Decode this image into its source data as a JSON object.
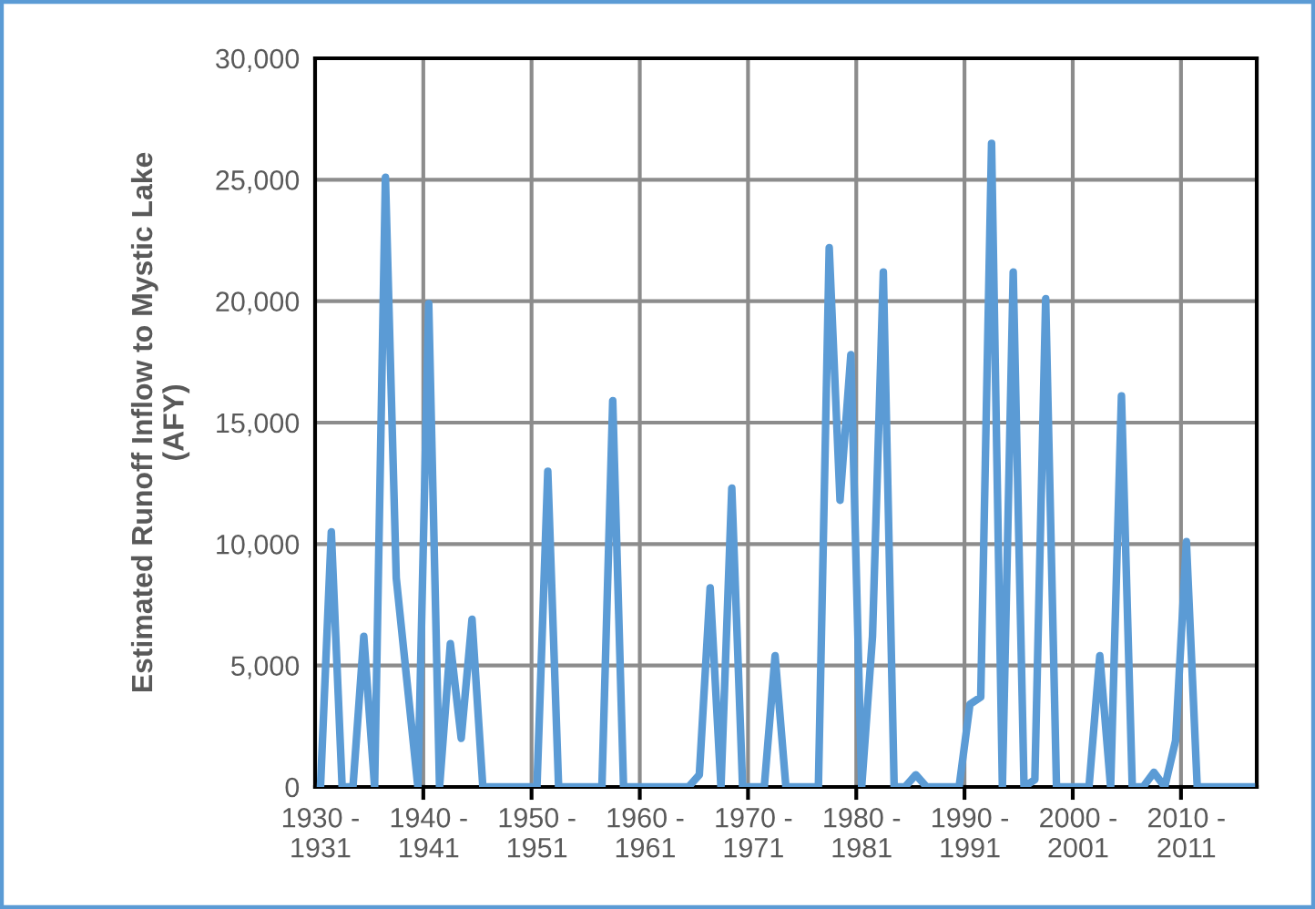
{
  "chart_data": {
    "type": "line",
    "ylabel": "Estimated Runoff Inflow to Mystic Lake (AFY)",
    "categories": [
      "1930 - 1931",
      null,
      null,
      null,
      null,
      null,
      null,
      null,
      null,
      null,
      "1940 - 1941",
      null,
      null,
      null,
      null,
      null,
      null,
      null,
      null,
      null,
      "1950 - 1951",
      null,
      null,
      null,
      null,
      null,
      null,
      null,
      null,
      null,
      "1960 - 1961",
      null,
      null,
      null,
      null,
      null,
      null,
      null,
      null,
      null,
      "1970 - 1971",
      null,
      null,
      null,
      null,
      null,
      null,
      null,
      null,
      null,
      "1980 - 1981",
      null,
      null,
      null,
      null,
      null,
      null,
      null,
      null,
      null,
      "1990 - 1991",
      null,
      null,
      null,
      null,
      null,
      null,
      null,
      null,
      null,
      "2000 - 2001",
      null,
      null,
      null,
      null,
      null,
      null,
      null,
      null,
      null,
      "2010 - 2011",
      null,
      null,
      null,
      null,
      null,
      null
    ],
    "series": [
      {
        "color": "#5b9bd5",
        "values": [
          0,
          10500,
          0,
          0,
          6200,
          0,
          25100,
          8600,
          4300,
          0,
          19900,
          0,
          5900,
          2000,
          6900,
          0,
          0,
          0,
          0,
          0,
          0,
          13000,
          0,
          0,
          0,
          0,
          0,
          15900,
          0,
          0,
          0,
          0,
          0,
          0,
          0,
          500,
          8200,
          0,
          12300,
          0,
          0,
          0,
          5400,
          0,
          0,
          0,
          0,
          22200,
          11800,
          17800,
          0,
          6200,
          21200,
          0,
          0,
          500,
          0,
          0,
          0,
          0,
          3400,
          3700,
          26500,
          0,
          21200,
          0,
          300,
          20100,
          0,
          0,
          0,
          0,
          5400,
          0,
          16100,
          0,
          0,
          600,
          0,
          1900,
          10100,
          0,
          0,
          0,
          0,
          0,
          0
        ]
      }
    ],
    "ylim": [
      0,
      30000
    ],
    "yticks": [
      0,
      {
        "value": 5000,
        "label": "5,000"
      },
      {
        "value": 10000,
        "label": "10,000"
      },
      {
        "value": 15000,
        "label": "15,000"
      },
      {
        "value": 20000,
        "label": "20,000"
      },
      {
        "value": 25000,
        "label": "25,000"
      },
      {
        "value": 30000,
        "label": "30,000"
      }
    ],
    "grid": true,
    "marker": "none",
    "line_style": "solid"
  }
}
